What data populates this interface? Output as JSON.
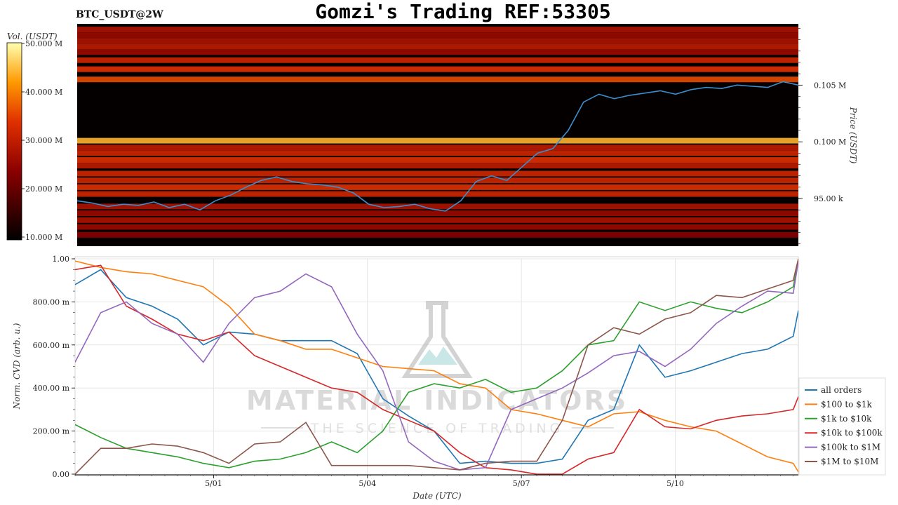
{
  "header": {
    "ticker": "BTC_USDT@2W",
    "title": "Gomzi's Trading REF:53305"
  },
  "watermark": {
    "line1": "MATERIAL INDICATORS",
    "line2": "THE SCIENCE OF TRADING"
  },
  "chart_data": [
    {
      "type": "heatmap",
      "colorbar": {
        "label": "Vol. (USDT)",
        "ticks": [
          "50.000 M",
          "40.000 M",
          "30.000 M",
          "20.000 M",
          "10.000 M"
        ],
        "range": [
          10,
          50
        ],
        "colormap": "hot"
      },
      "y_right": {
        "label": "Price (USDT)",
        "ticks": [
          "0.105 M",
          "0.100 M",
          "95.00 k"
        ],
        "tick_values": [
          105000,
          100000,
          95000
        ]
      },
      "price_series": {
        "name": "price",
        "color": "#3a8ed0",
        "x": [
          0,
          0.3,
          0.6,
          0.9,
          1.2,
          1.5,
          1.8,
          2.1,
          2.4,
          2.7,
          3.0,
          3.3,
          3.6,
          3.9,
          4.2,
          4.5,
          4.8,
          5.1,
          5.4,
          5.7,
          6.0,
          6.3,
          6.6,
          6.9,
          7.2,
          7.5,
          7.8,
          8.1,
          8.4,
          8.7,
          9.0,
          9.3,
          9.6,
          9.9,
          10.2,
          10.5,
          10.8,
          11.1,
          11.4,
          11.7,
          12.0,
          12.3,
          12.6,
          12.9,
          13.2,
          13.5,
          13.8,
          14.1
        ],
        "y": [
          94800,
          94600,
          94300,
          94500,
          94400,
          94700,
          94200,
          94500,
          94000,
          94800,
          95300,
          96000,
          96600,
          96900,
          96500,
          96300,
          96200,
          96000,
          95500,
          94500,
          94200,
          94300,
          94500,
          94100,
          93900,
          94800,
          96500,
          97000,
          96600,
          97800,
          99000,
          99400,
          101000,
          103500,
          104200,
          103800,
          104100,
          104300,
          104500,
          104200,
          104600,
          104800,
          104700,
          105000,
          104900,
          104800,
          105300,
          105000
        ]
      },
      "bands": [
        {
          "price": 109900,
          "level": 0.45
        },
        {
          "price": 109400,
          "level": 0.4
        },
        {
          "price": 108900,
          "level": 0.45
        },
        {
          "price": 108400,
          "level": 0.5
        },
        {
          "price": 107900,
          "level": 0.4
        },
        {
          "price": 107200,
          "level": 0.55
        },
        {
          "price": 106400,
          "level": 0.6
        },
        {
          "price": 105500,
          "level": 0.65
        },
        {
          "price": 100100,
          "level": 0.85
        },
        {
          "price": 99500,
          "level": 0.5
        },
        {
          "price": 99000,
          "level": 0.55
        },
        {
          "price": 98400,
          "level": 0.6
        },
        {
          "price": 97900,
          "level": 0.5
        },
        {
          "price": 97200,
          "level": 0.55
        },
        {
          "price": 96600,
          "level": 0.55
        },
        {
          "price": 96000,
          "level": 0.6
        },
        {
          "price": 95400,
          "level": 0.55
        },
        {
          "price": 94300,
          "level": 0.45
        },
        {
          "price": 93700,
          "level": 0.4
        },
        {
          "price": 93100,
          "level": 0.45
        },
        {
          "price": 92500,
          "level": 0.4
        },
        {
          "price": 91800,
          "level": 0.35
        }
      ]
    },
    {
      "type": "line",
      "xlabel": "Date (UTC)",
      "ylabel": "Norm. CVD (arb. u.)",
      "ylim": [
        0,
        1
      ],
      "y_ticks": [
        "0.00",
        "200.00 m",
        "400.00 m",
        "600.00 m",
        "800.00 m",
        "1.00"
      ],
      "x_ticks": [
        "5/01",
        "5/04",
        "5/07",
        "5/10"
      ],
      "x_tick_positions": [
        2.7,
        5.7,
        8.7,
        11.7
      ],
      "xlim": [
        0,
        14.1
      ],
      "grid": true,
      "legend_position": "bottom-right",
      "x": [
        0,
        0.5,
        1.0,
        1.5,
        2.0,
        2.5,
        3.0,
        3.5,
        4.0,
        4.5,
        5.0,
        5.5,
        6.0,
        6.5,
        7.0,
        7.5,
        8.0,
        8.5,
        9.0,
        9.5,
        10.0,
        10.5,
        11.0,
        11.5,
        12.0,
        12.5,
        13.0,
        13.5,
        14.0,
        14.1
      ],
      "series": [
        {
          "name": "all orders",
          "color": "#1f77b4",
          "values": [
            0.88,
            0.95,
            0.82,
            0.78,
            0.72,
            0.6,
            0.66,
            0.65,
            0.62,
            0.62,
            0.62,
            0.56,
            0.35,
            0.27,
            0.2,
            0.05,
            0.06,
            0.05,
            0.05,
            0.07,
            0.25,
            0.3,
            0.6,
            0.45,
            0.48,
            0.52,
            0.56,
            0.58,
            0.64,
            0.76
          ]
        },
        {
          "name": "$100 to $1k",
          "color": "#ff7f0e",
          "values": [
            0.99,
            0.96,
            0.94,
            0.93,
            0.9,
            0.87,
            0.78,
            0.65,
            0.62,
            0.58,
            0.58,
            0.54,
            0.5,
            0.49,
            0.48,
            0.42,
            0.4,
            0.3,
            0.28,
            0.25,
            0.22,
            0.28,
            0.29,
            0.25,
            0.22,
            0.2,
            0.14,
            0.08,
            0.05,
            0.01
          ]
        },
        {
          "name": "$1k to $10k",
          "color": "#2ca02c",
          "values": [
            0.23,
            0.17,
            0.12,
            0.1,
            0.08,
            0.05,
            0.03,
            0.06,
            0.07,
            0.1,
            0.15,
            0.1,
            0.2,
            0.38,
            0.42,
            0.4,
            0.44,
            0.38,
            0.4,
            0.48,
            0.6,
            0.62,
            0.8,
            0.76,
            0.8,
            0.77,
            0.75,
            0.8,
            0.87,
            0.99
          ]
        },
        {
          "name": "$10k to $100k",
          "color": "#d62728",
          "values": [
            0.95,
            0.97,
            0.78,
            0.72,
            0.65,
            0.62,
            0.66,
            0.55,
            0.5,
            0.45,
            0.4,
            0.38,
            0.3,
            0.25,
            0.2,
            0.1,
            0.03,
            0.02,
            0.0,
            0.0,
            0.07,
            0.1,
            0.3,
            0.22,
            0.21,
            0.25,
            0.27,
            0.28,
            0.3,
            0.36
          ]
        },
        {
          "name": "$100k to $1M",
          "color": "#9467bd",
          "values": [
            0.52,
            0.75,
            0.8,
            0.7,
            0.65,
            0.52,
            0.7,
            0.82,
            0.85,
            0.93,
            0.87,
            0.65,
            0.48,
            0.15,
            0.06,
            0.02,
            0.03,
            0.3,
            0.35,
            0.4,
            0.47,
            0.55,
            0.57,
            0.5,
            0.58,
            0.7,
            0.78,
            0.85,
            0.84,
            0.99
          ]
        },
        {
          "name": "$1M to $10M",
          "color": "#8c564b",
          "values": [
            0.0,
            0.12,
            0.12,
            0.14,
            0.13,
            0.1,
            0.05,
            0.14,
            0.15,
            0.24,
            0.04,
            0.04,
            0.04,
            0.04,
            0.03,
            0.02,
            0.05,
            0.06,
            0.06,
            0.25,
            0.6,
            0.68,
            0.65,
            0.72,
            0.75,
            0.83,
            0.82,
            0.86,
            0.9,
            1.0
          ]
        }
      ]
    }
  ]
}
